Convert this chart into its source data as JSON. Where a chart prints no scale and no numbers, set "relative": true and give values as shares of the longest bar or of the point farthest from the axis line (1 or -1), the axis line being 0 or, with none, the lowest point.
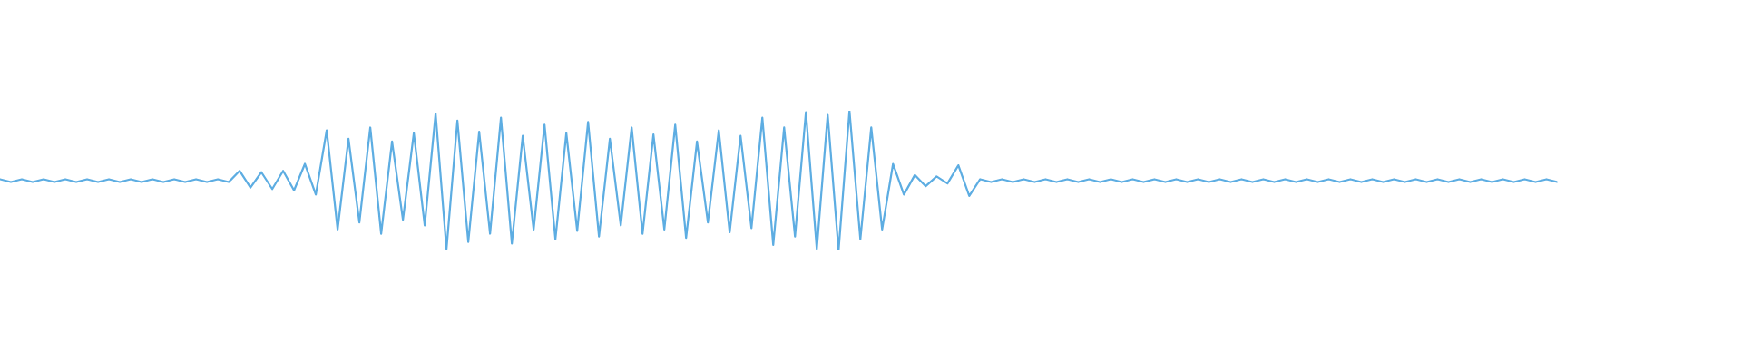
{
  "chart_data": {
    "type": "line",
    "relative": true,
    "tick_labels": false,
    "categories": [
      null,
      null,
      null,
      null,
      null,
      null,
      null,
      null,
      null,
      null,
      null,
      null,
      null,
      null,
      null,
      null,
      null,
      null,
      null,
      null,
      null,
      null,
      null,
      null,
      null,
      null,
      null,
      null,
      null,
      null,
      null,
      null,
      null,
      null,
      null,
      null,
      null,
      null,
      null,
      null,
      null,
      null,
      null,
      null,
      null,
      null,
      null,
      null,
      null,
      null,
      null,
      null,
      null,
      null,
      null,
      null,
      null,
      null,
      null,
      null,
      null,
      null,
      null,
      null,
      null,
      null,
      null,
      null,
      null,
      null,
      null,
      null,
      null,
      null,
      null,
      null,
      null,
      null,
      null,
      null,
      null,
      null,
      null,
      null,
      null,
      null,
      null,
      null,
      null,
      null,
      null,
      null,
      null,
      null,
      null,
      null,
      null,
      null,
      null,
      null,
      null,
      null,
      null,
      null,
      null,
      null,
      null,
      null,
      null,
      null,
      null,
      null,
      null,
      null,
      null,
      null,
      null,
      null,
      null,
      null,
      null,
      null,
      null,
      null,
      null,
      null,
      null,
      null,
      null,
      null,
      null,
      null,
      null,
      null,
      null,
      null,
      null,
      null,
      null,
      null,
      null,
      null,
      null,
      null
    ],
    "series": [
      {
        "color": "#5dade2",
        "values": [
          0.51,
          0.49,
          0.51,
          0.49,
          0.51,
          0.49,
          0.51,
          0.49,
          0.51,
          0.49,
          0.51,
          0.49,
          0.51,
          0.49,
          0.51,
          0.49,
          0.51,
          0.49,
          0.51,
          0.49,
          0.51,
          0.49,
          0.57,
          0.45,
          0.56,
          0.44,
          0.57,
          0.43,
          0.62,
          0.4,
          0.86,
          0.15,
          0.8,
          0.2,
          0.88,
          0.12,
          0.78,
          0.22,
          0.84,
          0.18,
          0.98,
          0.01,
          0.93,
          0.06,
          0.85,
          0.12,
          0.95,
          0.05,
          0.82,
          0.15,
          0.9,
          0.08,
          0.84,
          0.14,
          0.92,
          0.1,
          0.8,
          0.18,
          0.88,
          0.12,
          0.83,
          0.15,
          0.9,
          0.09,
          0.78,
          0.2,
          0.86,
          0.13,
          0.82,
          0.16,
          0.95,
          0.04,
          0.88,
          0.1,
          0.99,
          0.01,
          0.97,
          0.0,
          1.0,
          0.08,
          0.88,
          0.15,
          0.62,
          0.4,
          0.54,
          0.46,
          0.53,
          0.48,
          0.61,
          0.39,
          0.51,
          0.49,
          0.51,
          0.49,
          0.51,
          0.49,
          0.51,
          0.49,
          0.51,
          0.49,
          0.51,
          0.49,
          0.51,
          0.49,
          0.51,
          0.49,
          0.51,
          0.49,
          0.51,
          0.49,
          0.51,
          0.49,
          0.51,
          0.49,
          0.51,
          0.49,
          0.51,
          0.49,
          0.51,
          0.49,
          0.51,
          0.49,
          0.51,
          0.49,
          0.51,
          0.49,
          0.51,
          0.49,
          0.51,
          0.49,
          0.51,
          0.49,
          0.51,
          0.49,
          0.51,
          0.49,
          0.51,
          0.49,
          0.51,
          0.49,
          0.51,
          0.49,
          0.51,
          0.49
        ]
      }
    ]
  }
}
